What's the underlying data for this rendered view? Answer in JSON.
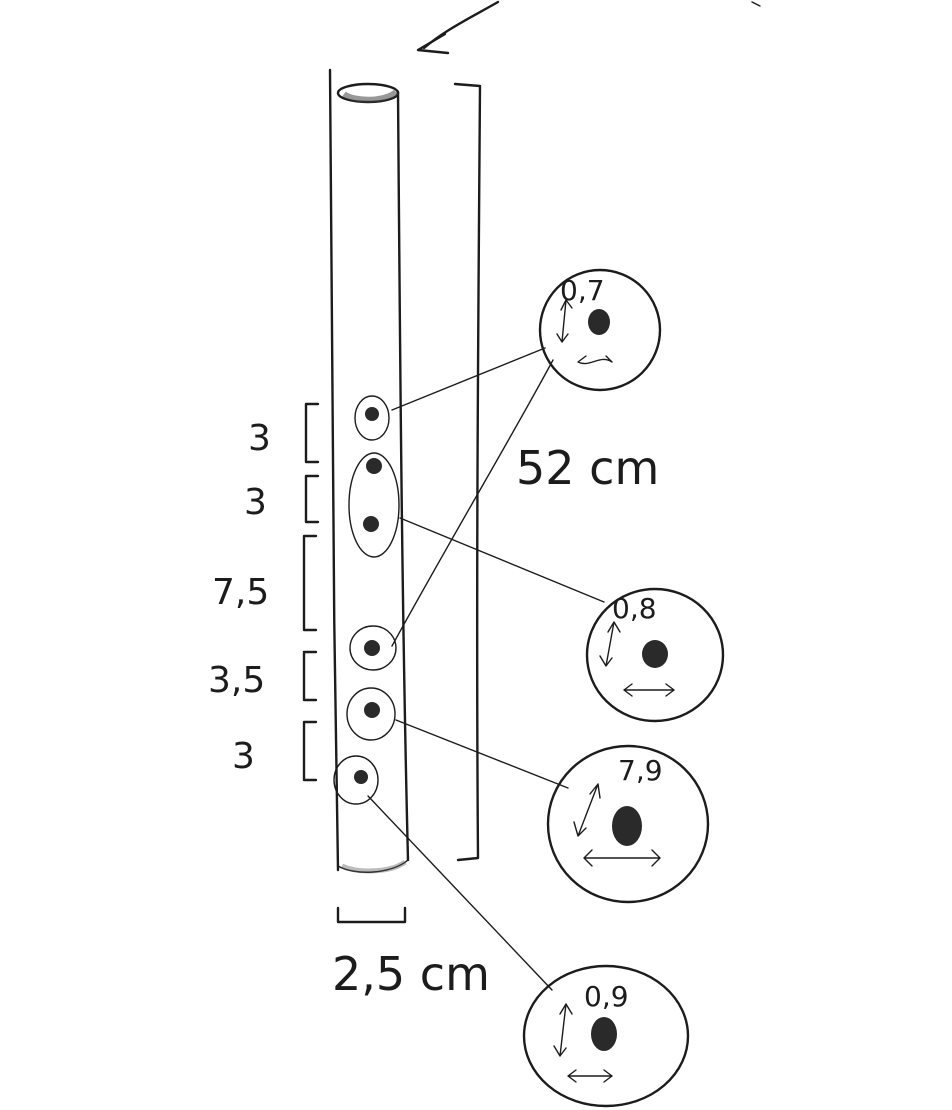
{
  "flute": {
    "length_label": "52 cm",
    "diameter_label": "2,5 cm"
  },
  "spacings": [
    "3",
    "3",
    "7,5",
    "3,5",
    "3"
  ],
  "hole_diameters": [
    "0,7",
    "0,8",
    "7,9",
    "0,9"
  ]
}
